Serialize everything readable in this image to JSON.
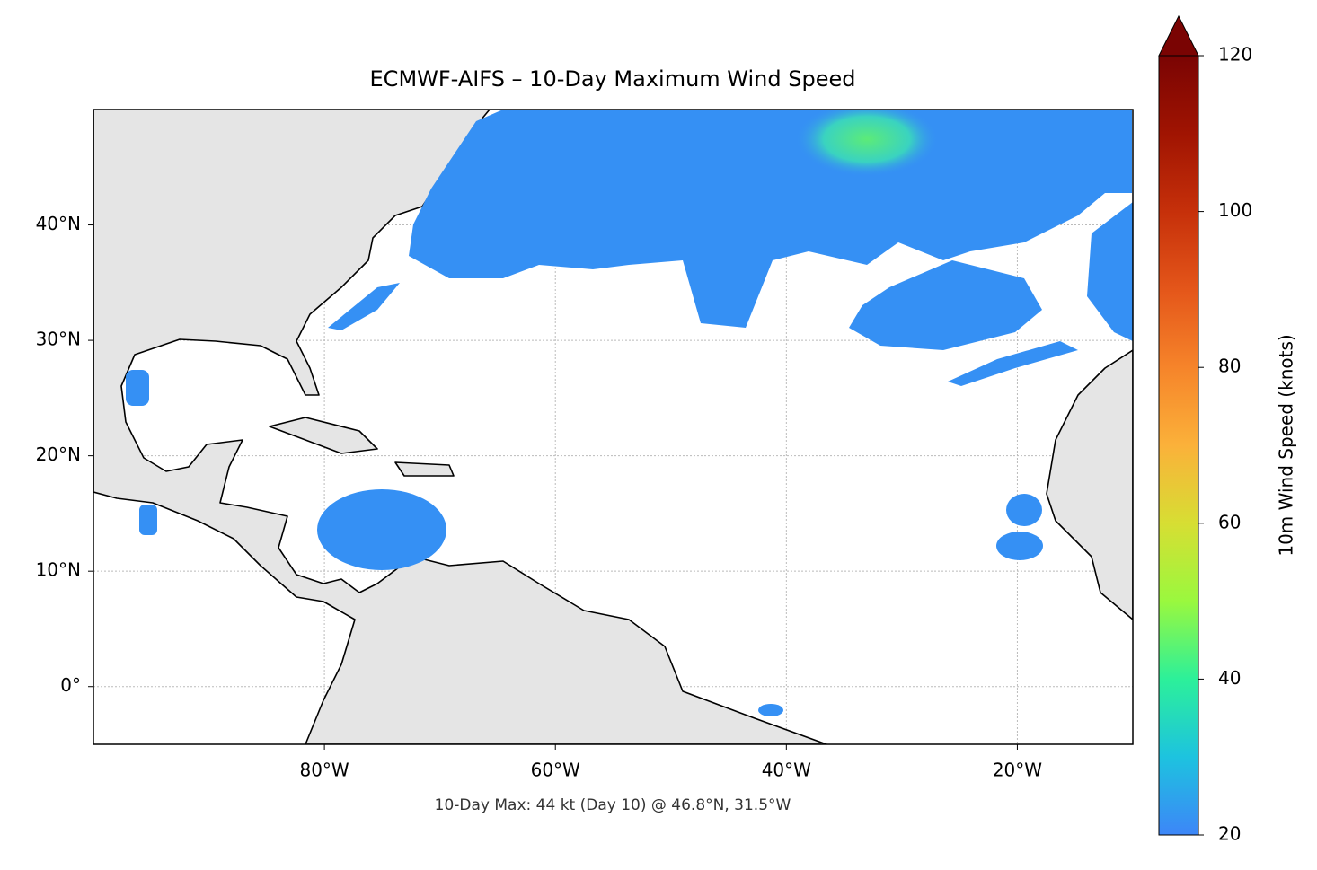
{
  "map": {
    "title": "ECMWF-AIFS – 10-Day Maximum Wind Speed",
    "xlim": [
      -100,
      -10
    ],
    "ylim": [
      -5,
      50
    ],
    "xticks": [
      {
        "value": -80,
        "label": "80°W"
      },
      {
        "value": -60,
        "label": "60°W"
      },
      {
        "value": -40,
        "label": "40°W"
      },
      {
        "value": -20,
        "label": "20°W"
      }
    ],
    "yticks": [
      {
        "value": 0,
        "label": "0°"
      },
      {
        "value": 10,
        "label": "10°N"
      },
      {
        "value": 20,
        "label": "20°N"
      },
      {
        "value": 30,
        "label": "30°N"
      },
      {
        "value": 40,
        "label": "40°N"
      }
    ],
    "grid": true,
    "annotation": "10-Day Max: 44 kt (Day 10) @ 46.8°N, 31.5°W"
  },
  "colorbar": {
    "label": "10m Wind Speed (knots)",
    "lim": [
      20,
      120
    ],
    "ticks": [
      20,
      40,
      60,
      80,
      100,
      120
    ],
    "extend": "max"
  }
}
